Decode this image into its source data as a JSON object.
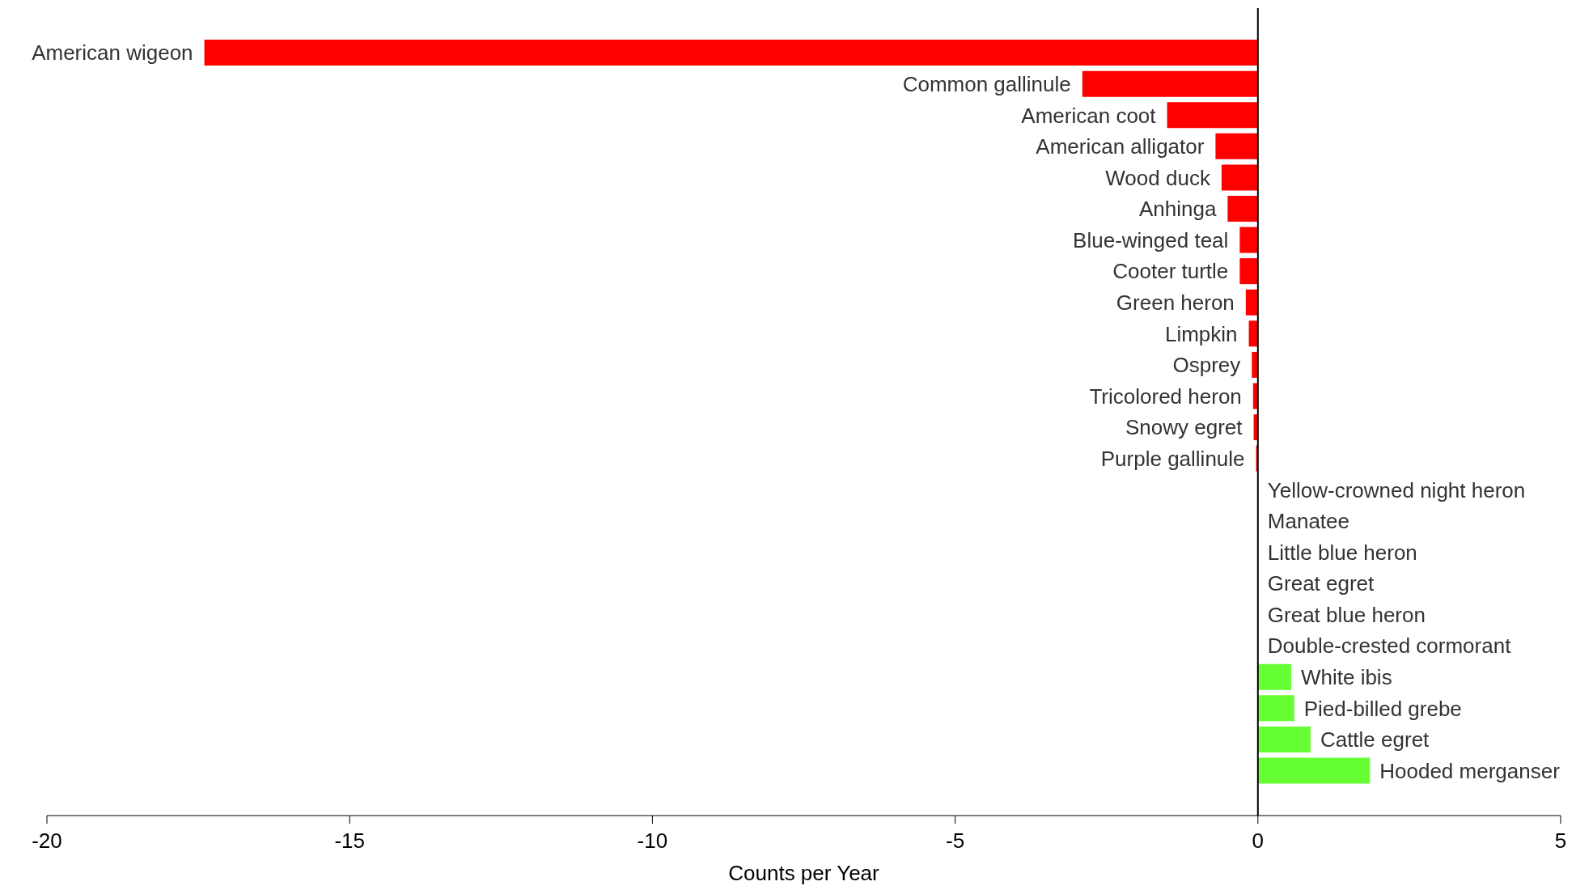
{
  "chart_data": {
    "type": "bar",
    "orientation": "horizontal",
    "xlabel": "Counts per Year",
    "categories": [
      "American wigeon",
      "Common gallinule",
      "American coot",
      "American alligator",
      "Wood duck",
      "Anhinga",
      "Blue-winged teal",
      "Cooter turtle",
      "Green heron",
      "Limpkin",
      "Osprey",
      "Tricolored heron",
      "Snowy egret",
      "Purple gallinule",
      "Yellow-crowned night heron",
      "Manatee",
      "Little blue heron",
      "Great egret",
      "Great blue heron",
      "Double-crested cormorant",
      "White ibis",
      "Pied-billed grebe",
      "Cattle egret",
      "Hooded merganser"
    ],
    "values": [
      -17.4,
      -2.9,
      -1.5,
      -0.7,
      -0.6,
      -0.5,
      -0.3,
      -0.3,
      -0.2,
      -0.15,
      -0.1,
      -0.08,
      -0.07,
      -0.03,
      0,
      0,
      0,
      0,
      0,
      0,
      0.55,
      0.6,
      0.87,
      1.85
    ],
    "colors": [
      "#ff0000",
      "#ff0000",
      "#ff0000",
      "#ff0000",
      "#ff0000",
      "#ff0000",
      "#ff0000",
      "#ff0000",
      "#ff0000",
      "#ff0000",
      "#ff0000",
      "#ff0000",
      "#ff0000",
      "#ff0000",
      "#66ff33",
      "#66ff33",
      "#66ff33",
      "#66ff33",
      "#66ff33",
      "#66ff33",
      "#66ff33",
      "#66ff33",
      "#66ff33",
      "#66ff33"
    ],
    "xlim": [
      -20,
      5
    ],
    "xticks": [
      -20,
      -15,
      -10,
      -5,
      0,
      5
    ]
  }
}
